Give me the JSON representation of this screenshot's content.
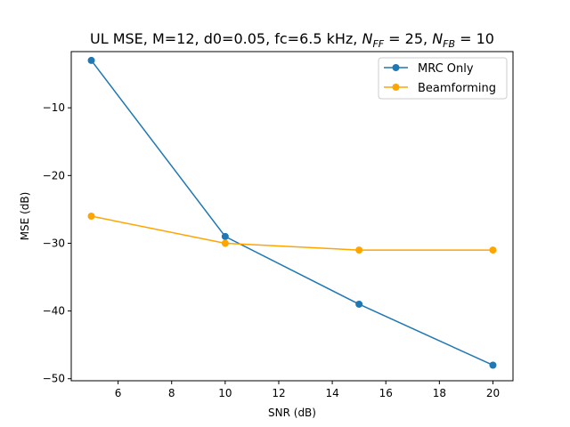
{
  "chart_data": {
    "type": "line",
    "title_parts": {
      "prefix": "UL MSE, M=12, d0=0.05, fc=6.5 kHz, ",
      "n_ff_base": "N",
      "n_ff_sub": "FF",
      "n_ff_value": " = 25, ",
      "n_fb_base": "N",
      "n_fb_sub": "FB",
      "n_fb_value": " = 10"
    },
    "xlabel": "SNR (dB)",
    "ylabel": "MSE (dB)",
    "xlim": [
      4.25,
      20.75
    ],
    "ylim": [
      -50.3,
      -1.7
    ],
    "xticks": [
      6,
      8,
      10,
      12,
      14,
      16,
      18,
      20
    ],
    "yticks": [
      -50,
      -40,
      -30,
      -20,
      -10
    ],
    "ytick_labels": [
      "−50",
      "−40",
      "−30",
      "−20",
      "−10"
    ],
    "grid": false,
    "legend_position": "upper right",
    "x": [
      5,
      10,
      15,
      20
    ],
    "series": [
      {
        "name": "MRC Only",
        "values": [
          -3,
          -29,
          -39,
          -48
        ],
        "color": "#1f77b4"
      },
      {
        "name": "Beamforming",
        "values": [
          -26,
          -30,
          -31,
          -31
        ],
        "color": "#ffa500"
      }
    ]
  }
}
